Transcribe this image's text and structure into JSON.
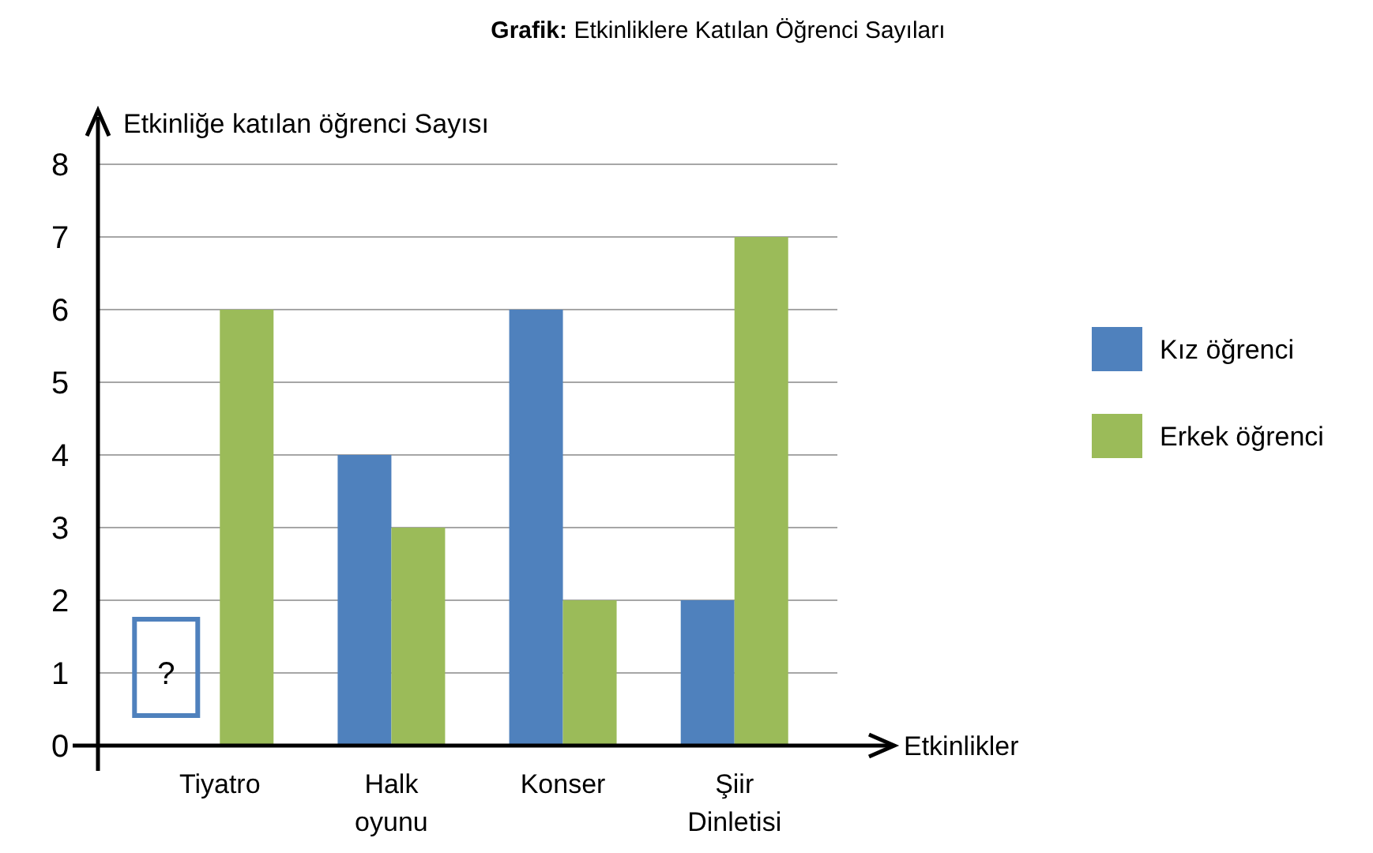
{
  "chart_data": {
    "type": "bar",
    "title": "Grafik: Etkinliklere Katılan Öğrenci Sayıları",
    "ylabel": "Etkinliğe katılan öğrenci Sayısı",
    "xlabel": "Etkinlikler",
    "categories": [
      "Tiyatro",
      "Halk oyunu",
      "Konser",
      "Şiir Dinletisi"
    ],
    "series": [
      {
        "name": "Kız öğrenci",
        "color": "#4f81bd",
        "values": [
          null,
          4,
          6,
          2
        ]
      },
      {
        "name": "Erkek öğrenci",
        "color": "#9bbb59",
        "values": [
          6,
          3,
          2,
          7
        ]
      }
    ],
    "ylim": [
      0,
      8
    ],
    "yticks": [
      0,
      1,
      2,
      3,
      4,
      5,
      6,
      7,
      8
    ],
    "grid": "y",
    "legend": "right",
    "annotations": [
      {
        "text": "?",
        "x": "Tiyatro",
        "y": 1
      }
    ]
  }
}
